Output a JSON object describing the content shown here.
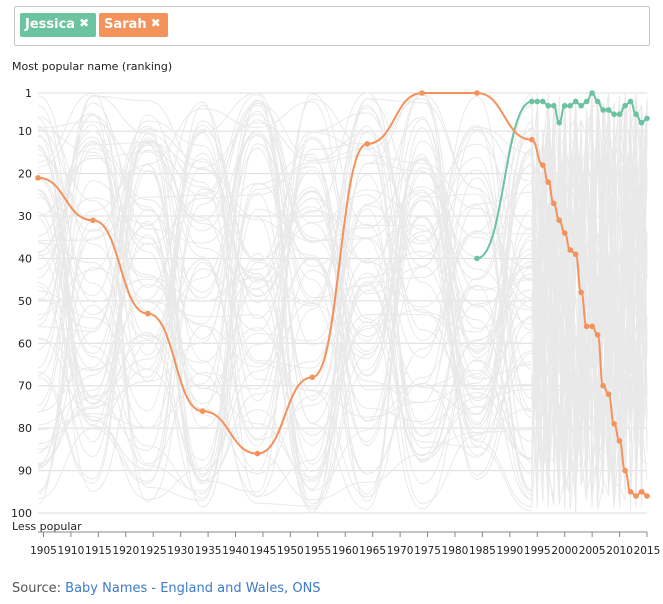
{
  "selector": {
    "tags": [
      {
        "label": "Jessica",
        "remove": "✖",
        "color": "#6cc3a0"
      },
      {
        "label": "Sarah",
        "remove": "✖",
        "color": "#f4925b"
      }
    ]
  },
  "source": {
    "prefix": "Source: ",
    "link_text": "Baby Names - England and Wales, ONS"
  },
  "chart_data": {
    "type": "line",
    "title": "",
    "ylabel": "Most popular name (ranking)",
    "ylabel_bottom": "Less popular",
    "xlabel": "",
    "ylim": [
      1,
      100
    ],
    "y_inverted": true,
    "y_ticks": [
      1,
      10,
      20,
      30,
      40,
      50,
      60,
      70,
      80,
      90,
      100
    ],
    "x_ticks": [
      1905,
      1910,
      1915,
      1920,
      1925,
      1930,
      1935,
      1940,
      1945,
      1950,
      1955,
      1960,
      1965,
      1970,
      1975,
      1980,
      1985,
      1990,
      1995,
      2000,
      2005,
      2010,
      2015
    ],
    "xlim": [
      1904,
      2015
    ],
    "background_series": "other baby names (light grey)",
    "series": [
      {
        "name": "Jessica",
        "color": "#6cc3a0",
        "x": [
          1984,
          1994,
          1995,
          1996,
          1997,
          1998,
          1999,
          2000,
          2001,
          2002,
          2003,
          2004,
          2005,
          2006,
          2007,
          2008,
          2009,
          2010,
          2011,
          2012,
          2013,
          2014,
          2015
        ],
        "y": [
          40,
          3,
          3,
          3,
          4,
          4,
          8,
          4,
          4,
          3,
          4,
          3,
          1,
          3,
          5,
          5,
          6,
          6,
          4,
          3,
          6,
          8,
          7
        ]
      },
      {
        "name": "Sarah",
        "color": "#f4925b",
        "x": [
          1904,
          1914,
          1924,
          1934,
          1944,
          1954,
          1964,
          1974,
          1984,
          1994,
          1996,
          1997,
          1998,
          1999,
          2000,
          2001,
          2002,
          2003,
          2004,
          2005,
          2006,
          2007,
          2008,
          2009,
          2010,
          2011,
          2012,
          2013,
          2014,
          2015
        ],
        "y": [
          21,
          31,
          53,
          76,
          86,
          68,
          13,
          1,
          1,
          12,
          18,
          22,
          27,
          31,
          34,
          38,
          39,
          48,
          56,
          56,
          58,
          70,
          72,
          79,
          83,
          90,
          95,
          96,
          95,
          96
        ]
      }
    ]
  }
}
